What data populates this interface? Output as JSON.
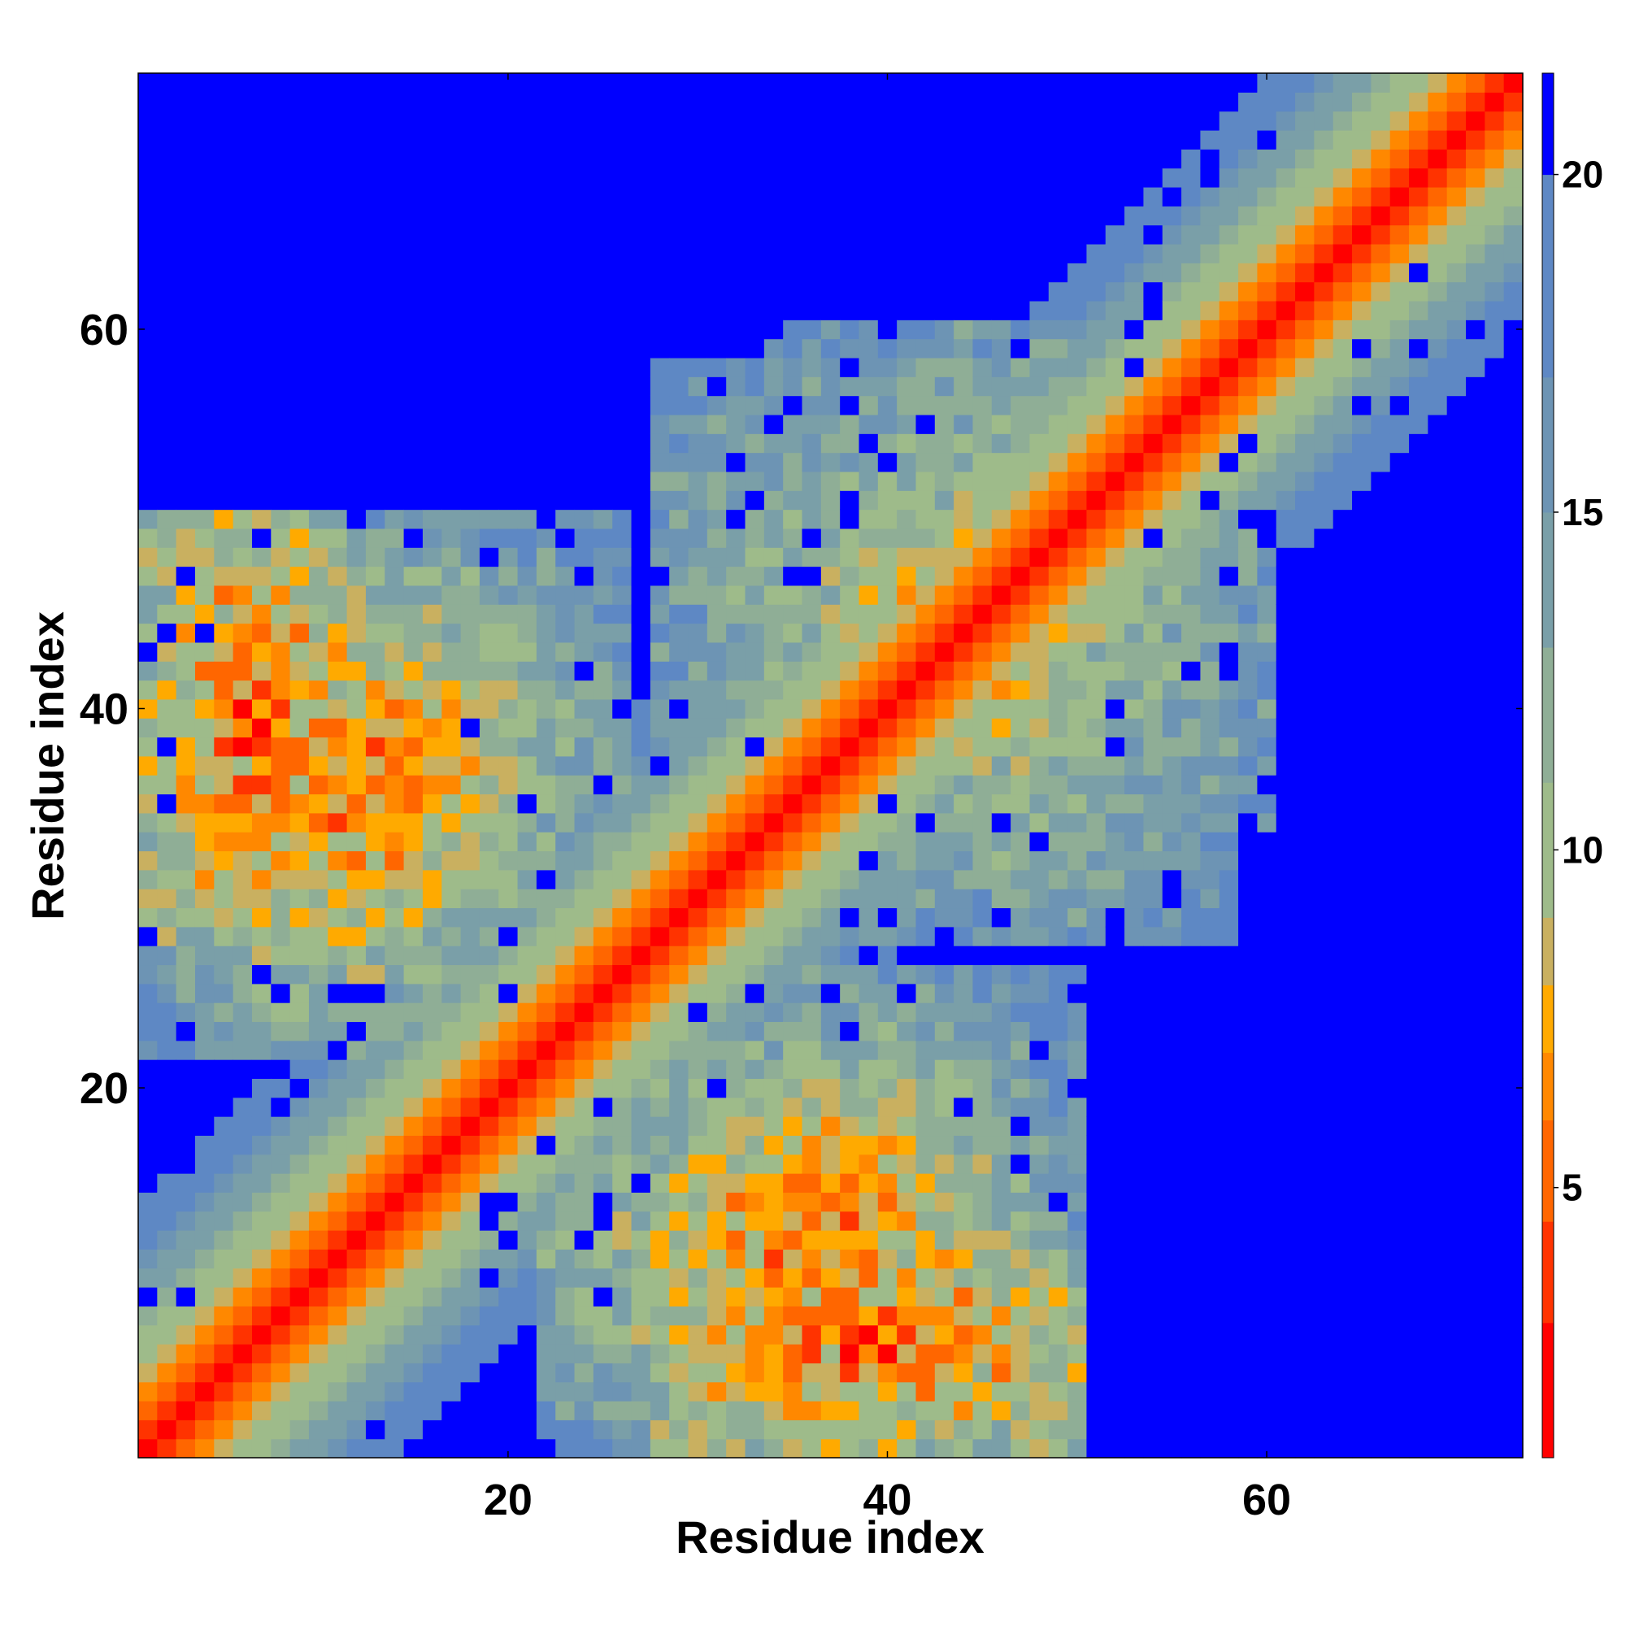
{
  "chart_data": {
    "type": "heatmap",
    "title": "",
    "xlabel": "Residue index",
    "ylabel": "Residue index",
    "n_residues": 73,
    "xlim": [
      1,
      73
    ],
    "ylim": [
      1,
      73
    ],
    "x_ticks": [
      20,
      40,
      60
    ],
    "y_ticks": [
      20,
      40,
      60
    ],
    "colorbar": {
      "ticks": [
        5,
        10,
        15,
        20
      ],
      "range": [
        1,
        21.5
      ],
      "levels": [
        {
          "max": 3.0,
          "color": "#ff0000"
        },
        {
          "max": 4.5,
          "color": "#ff3300"
        },
        {
          "max": 6.0,
          "color": "#ff6600"
        },
        {
          "max": 7.0,
          "color": "#ff8800"
        },
        {
          "max": 8.0,
          "color": "#ffaa00"
        },
        {
          "max": 9.0,
          "color": "#c9b060"
        },
        {
          "max": 11.0,
          "color": "#9ebb8a"
        },
        {
          "max": 13.0,
          "color": "#8fae96"
        },
        {
          "max": 15.0,
          "color": "#7a9fa8"
        },
        {
          "max": 17.0,
          "color": "#6d94b4"
        },
        {
          "max": 20.0,
          "color": "#5e88c4"
        },
        {
          "max": 99.0,
          "color": "#0000ff"
        }
      ]
    },
    "value_description": "Pairwise residue distance matrix; values near diagonal are small (red), far pairs saturate (blue).",
    "diagonal_profile": [
      1,
      3.8,
      5.4,
      6.5,
      8.2,
      9.6,
      11.0,
      12.3,
      13.5,
      14.8,
      16.0,
      17.3,
      18.5,
      19.8,
      21.0
    ],
    "contact_regions": [
      {
        "i": [
          1,
          26
        ],
        "j": [
          26,
          50
        ],
        "min_value": 6.5,
        "spread": 9.0
      },
      {
        "i": [
          1,
          12
        ],
        "j": [
          28,
          50
        ],
        "min_value": 5.0,
        "spread": 6.0
      },
      {
        "i": [
          28,
          60
        ],
        "j": [
          34,
          58
        ],
        "min_value": 8.5,
        "spread": 7.0
      },
      {
        "i": [
          22,
          45
        ],
        "j": [
          1,
          22
        ],
        "min_value": 6.5,
        "spread": 8.0
      }
    ],
    "far_cutoff": 21.0
  }
}
